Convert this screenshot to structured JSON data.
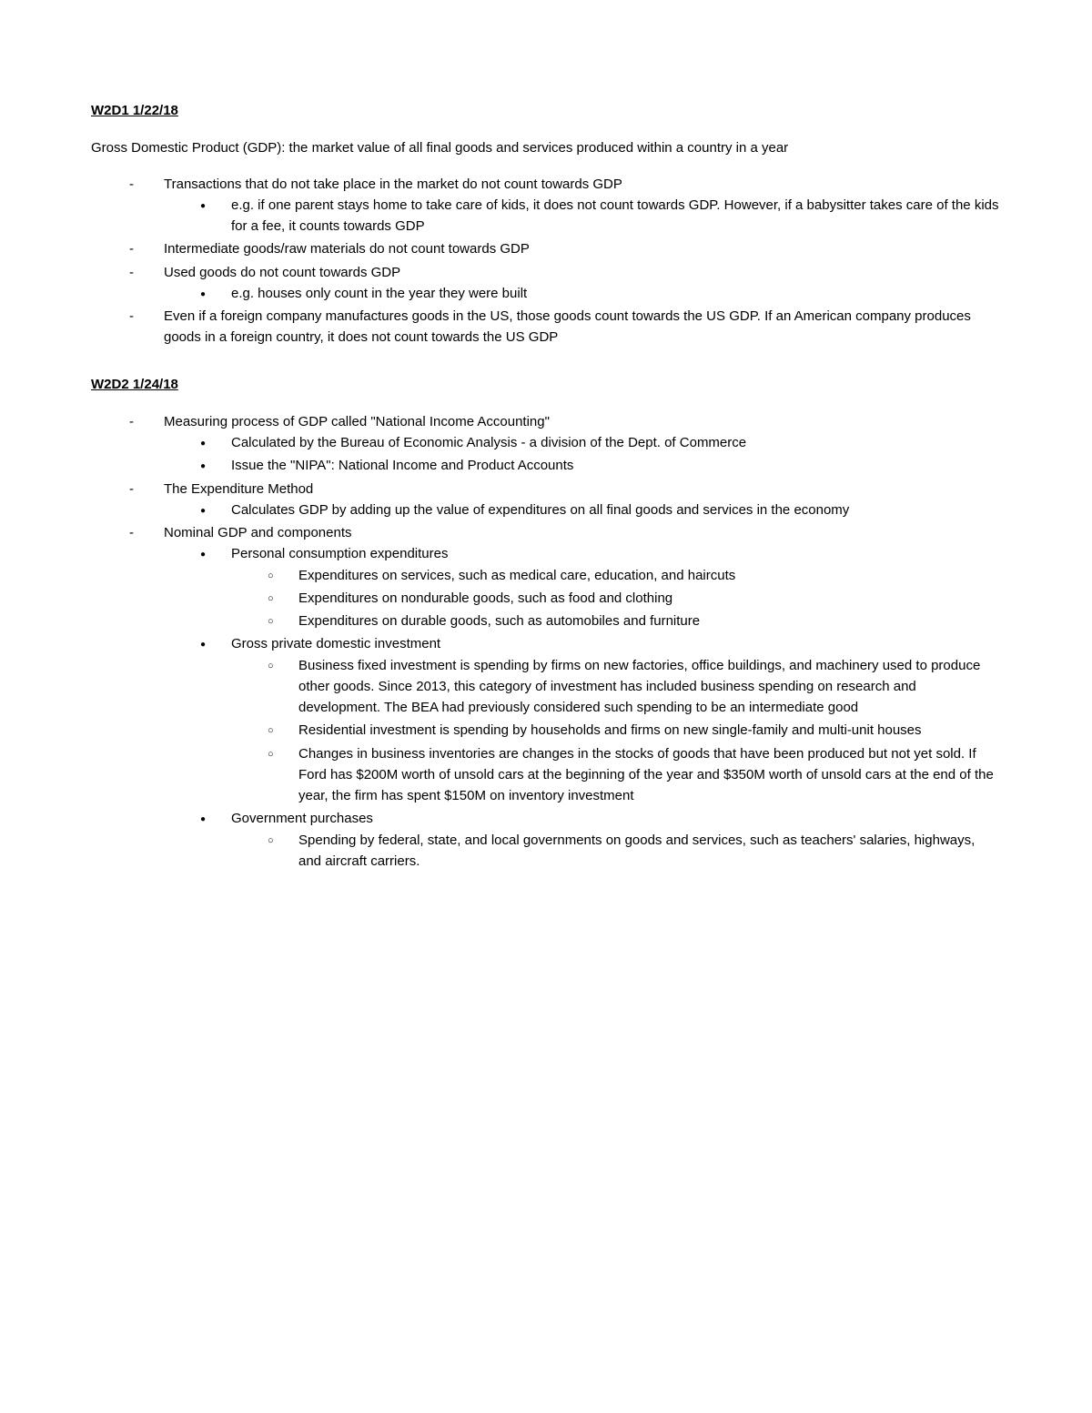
{
  "section1": {
    "heading": "W2D1 1/22/18",
    "intro": "Gross Domestic Product (GDP): the market value of all final goods and services produced within a country in a year",
    "items": [
      {
        "text": "Transactions that do not take place in the market do not count towards GDP",
        "sub": [
          "e.g. if one parent stays home to take care of kids, it does not count towards GDP. However, if a babysitter takes care of the kids for a fee, it counts towards GDP"
        ]
      },
      {
        "text": "Intermediate goods/raw materials do not count towards GDP"
      },
      {
        "text": "Used goods do not count towards GDP",
        "sub": [
          "e.g. houses only count in the year they were built"
        ]
      },
      {
        "text": "Even if a foreign company manufactures goods in the US, those goods count towards the US GDP. If an American company produces goods in a foreign country, it does not count towards the US GDP"
      }
    ]
  },
  "section2": {
    "heading": "W2D2 1/24/18",
    "items": [
      {
        "text": "Measuring process of GDP called \"National Income Accounting\"",
        "sub": [
          {
            "text": "Calculated by the Bureau of Economic Analysis - a division of the Dept. of Commerce"
          },
          {
            "text": "Issue the \"NIPA\": National Income and Product Accounts"
          }
        ]
      },
      {
        "text": "The Expenditure Method",
        "sub": [
          {
            "text": "Calculates GDP by adding up the value of expenditures on all final goods and services in the economy"
          }
        ]
      },
      {
        "text": "Nominal GDP and components",
        "sub": [
          {
            "text": "Personal consumption expenditures",
            "sub": [
              "Expenditures on services, such as medical care, education, and haircuts",
              "Expenditures on nondurable goods, such as food and clothing",
              "Expenditures on durable goods, such as automobiles and furniture"
            ]
          },
          {
            "text": "Gross private domestic investment",
            "sub": [
              "Business fixed investment is spending by firms on new factories, office buildings, and machinery used to produce other goods. Since 2013, this category of investment has included business spending on research and development. The BEA had previously considered such spending to be an intermediate good",
              "Residential investment is spending by households and firms on new single-family and multi-unit houses",
              "Changes in business inventories are changes in the stocks of goods that have been produced but not yet sold. If Ford has $200M worth of unsold cars at the beginning of the year and $350M worth of unsold cars at the end of the year, the firm has spent $150M on inventory investment"
            ]
          },
          {
            "text": "Government purchases",
            "sub": [
              "Spending by federal, state, and local governments on goods and services, such as teachers' salaries, highways, and aircraft carriers."
            ]
          }
        ]
      }
    ]
  }
}
